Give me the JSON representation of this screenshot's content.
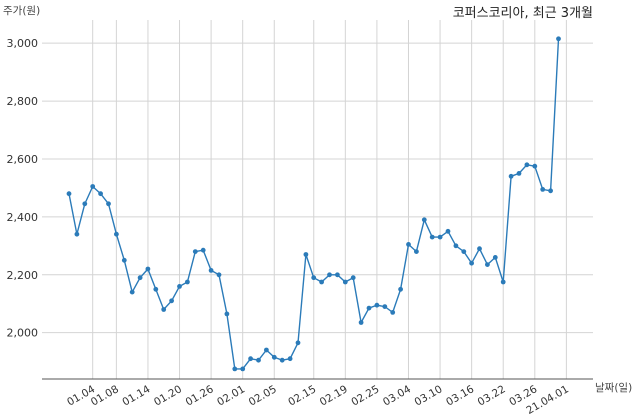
{
  "chart_data": {
    "type": "line",
    "title": "코퍼스코리아, 최근 3개월",
    "ylabel": "주가(원)",
    "xlabel": "날짜(일)",
    "ylim": [
      1840,
      3080
    ],
    "yticks": [
      2000,
      2200,
      2400,
      2600,
      2800,
      3000
    ],
    "ytick_labels": [
      "2,000",
      "2,200",
      "2,400",
      "2,600",
      "2,800",
      "3,000"
    ],
    "xtick_labels": [
      "01.04",
      "01.08",
      "01.14",
      "01.20",
      "01.26",
      "02.01",
      "02.05",
      "02.15",
      "02.19",
      "02.25",
      "03.04",
      "03.10",
      "03.16",
      "03.22",
      "03.26",
      "21.04.01"
    ],
    "xtick_index": [
      3,
      6,
      10,
      14,
      18,
      22,
      26,
      31,
      35,
      39,
      43,
      47,
      51,
      55,
      59,
      63
    ],
    "grid": true,
    "series": [
      {
        "color": "#2b7bb9",
        "values": [
          2480,
          2340,
          2445,
          2505,
          2480,
          2445,
          2340,
          2250,
          2140,
          2190,
          2220,
          2150,
          2080,
          2110,
          2160,
          2175,
          2280,
          2285,
          2215,
          2200,
          2065,
          1875,
          1875,
          1910,
          1905,
          1940,
          1915,
          1905,
          1910,
          1965,
          2270,
          2190,
          2175,
          2200,
          2200,
          2175,
          2190,
          2035,
          2085,
          2095,
          2090,
          2070,
          2150,
          2305,
          2280,
          2390,
          2330,
          2330,
          2350,
          2300,
          2280,
          2240,
          2290,
          2235,
          2260,
          2175,
          2540,
          2550,
          2580,
          2575,
          2495,
          2490,
          3015
        ]
      }
    ]
  }
}
